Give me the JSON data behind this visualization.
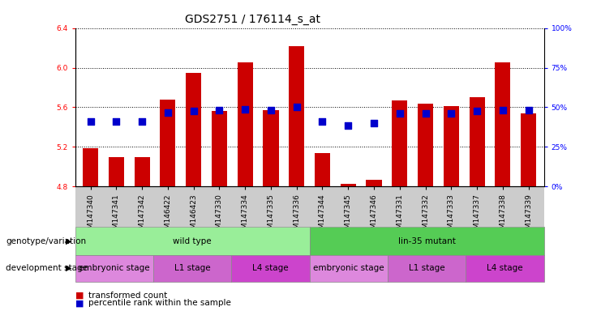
{
  "title": "GDS2751 / 176114_s_at",
  "samples": [
    "GSM147340",
    "GSM147341",
    "GSM147342",
    "GSM146422",
    "GSM146423",
    "GSM147330",
    "GSM147334",
    "GSM147335",
    "GSM147336",
    "GSM147344",
    "GSM147345",
    "GSM147346",
    "GSM147331",
    "GSM147332",
    "GSM147333",
    "GSM147337",
    "GSM147338",
    "GSM147339"
  ],
  "bar_tops": [
    5.19,
    5.1,
    5.1,
    5.68,
    5.95,
    5.56,
    6.05,
    5.57,
    6.22,
    5.14,
    4.83,
    4.87,
    5.67,
    5.64,
    5.61,
    5.7,
    6.05,
    5.54
  ],
  "blue_y": [
    5.46,
    5.46,
    5.46,
    5.55,
    5.56,
    5.57,
    5.58,
    5.57,
    5.6,
    5.46,
    5.42,
    5.44,
    5.54,
    5.54,
    5.54,
    5.56,
    5.57,
    5.57
  ],
  "bar_bottom": 4.8,
  "ylim": [
    4.8,
    6.4
  ],
  "yticks_left": [
    4.8,
    5.2,
    5.6,
    6.0,
    6.4
  ],
  "yticks_right": [
    0,
    25,
    50,
    75,
    100
  ],
  "right_ylim": [
    0,
    100
  ],
  "bar_color": "#CC0000",
  "blue_color": "#0000CC",
  "bg_color": "#ffffff",
  "genotype_labels": [
    {
      "text": "wild type",
      "start": 0,
      "end": 8,
      "color": "#99EE99"
    },
    {
      "text": "lin-35 mutant",
      "start": 9,
      "end": 17,
      "color": "#55CC55"
    }
  ],
  "stage_labels": [
    {
      "text": "embryonic stage",
      "start": 0,
      "end": 2,
      "color": "#DD88DD"
    },
    {
      "text": "L1 stage",
      "start": 3,
      "end": 5,
      "color": "#CC66CC"
    },
    {
      "text": "L4 stage",
      "start": 6,
      "end": 8,
      "color": "#CC44CC"
    },
    {
      "text": "embryonic stage",
      "start": 9,
      "end": 11,
      "color": "#DD88DD"
    },
    {
      "text": "L1 stage",
      "start": 12,
      "end": 14,
      "color": "#CC66CC"
    },
    {
      "text": "L4 stage",
      "start": 15,
      "end": 17,
      "color": "#CC44CC"
    }
  ],
  "legend_items": [
    {
      "label": "transformed count",
      "color": "#CC0000"
    },
    {
      "label": "percentile rank within the sample",
      "color": "#0000CC"
    }
  ],
  "bar_width": 0.6,
  "blue_size": 30,
  "tick_fontsize": 6.5,
  "stage_fontsize": 7.5,
  "title_fontsize": 10,
  "row_label_fontsize": 7.5
}
